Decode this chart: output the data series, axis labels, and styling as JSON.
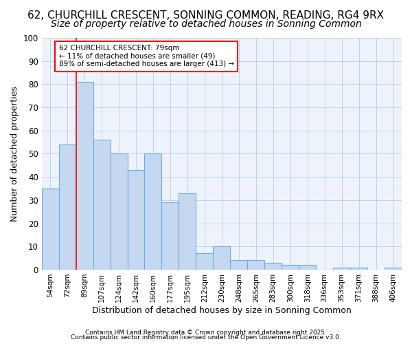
{
  "title1": "62, CHURCHILL CRESCENT, SONNING COMMON, READING, RG4 9RX",
  "title2": "Size of property relative to detached houses in Sonning Common",
  "xlabel": "Distribution of detached houses by size in Sonning Common",
  "ylabel": "Number of detached properties",
  "categories": [
    "54sqm",
    "72sqm",
    "89sqm",
    "107sqm",
    "124sqm",
    "142sqm",
    "160sqm",
    "177sqm",
    "195sqm",
    "212sqm",
    "230sqm",
    "248sqm",
    "265sqm",
    "283sqm",
    "300sqm",
    "318sqm",
    "336sqm",
    "353sqm",
    "371sqm",
    "388sqm",
    "406sqm"
  ],
  "values": [
    35,
    54,
    81,
    56,
    50,
    43,
    50,
    29,
    33,
    7,
    10,
    4,
    4,
    3,
    2,
    2,
    0,
    1,
    1,
    0,
    1
  ],
  "bar_color": "#c5d8f0",
  "bar_edge_color": "#6aaee8",
  "annotation_text_line1": "62 CHURCHILL CRESCENT: 79sqm",
  "annotation_text_line2": "← 11% of detached houses are smaller (49)",
  "annotation_text_line3": "89% of semi-detached houses are larger (413) →",
  "annotation_box_color": "white",
  "annotation_box_edge_color": "red",
  "red_line_x": 1.5,
  "ylim": [
    0,
    100
  ],
  "yticks": [
    0,
    10,
    20,
    30,
    40,
    50,
    60,
    70,
    80,
    90,
    100
  ],
  "footer1": "Contains HM Land Registry data © Crown copyright and database right 2025.",
  "footer2": "Contains public sector information licensed under the Open Government Licence v3.0.",
  "bg_color": "#ffffff",
  "plot_bg_color": "#eef3fb",
  "grid_color": "#b8cce8",
  "title1_fontsize": 11,
  "title2_fontsize": 10,
  "label_fontsize": 9,
  "footer_fontsize": 6.5
}
